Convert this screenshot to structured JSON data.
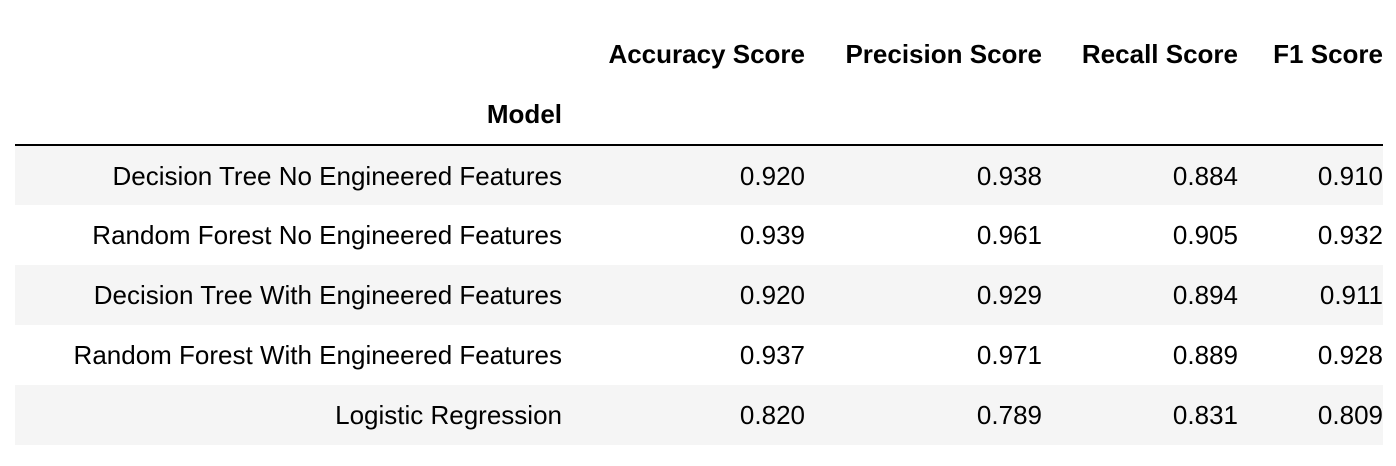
{
  "table": {
    "columns": [
      "Accuracy Score",
      "Precision Score",
      "Recall Score",
      "F1 Score"
    ],
    "index_name": "Model",
    "rows": [
      {
        "model": "Decision Tree No Engineered Features",
        "values": [
          "0.920",
          "0.938",
          "0.884",
          "0.910"
        ]
      },
      {
        "model": "Random Forest No Engineered Features",
        "values": [
          "0.939",
          "0.961",
          "0.905",
          "0.932"
        ]
      },
      {
        "model": "Decision Tree With Engineered Features",
        "values": [
          "0.920",
          "0.929",
          "0.894",
          "0.911"
        ]
      },
      {
        "model": "Random Forest With Engineered Features",
        "values": [
          "0.937",
          "0.971",
          "0.889",
          "0.928"
        ]
      },
      {
        "model": "Logistic Regression",
        "values": [
          "0.820",
          "0.789",
          "0.831",
          "0.809"
        ]
      }
    ]
  },
  "colors": {
    "stripe": "#f5f5f5",
    "background": "#ffffff",
    "text": "#000000",
    "rule": "#000000"
  }
}
